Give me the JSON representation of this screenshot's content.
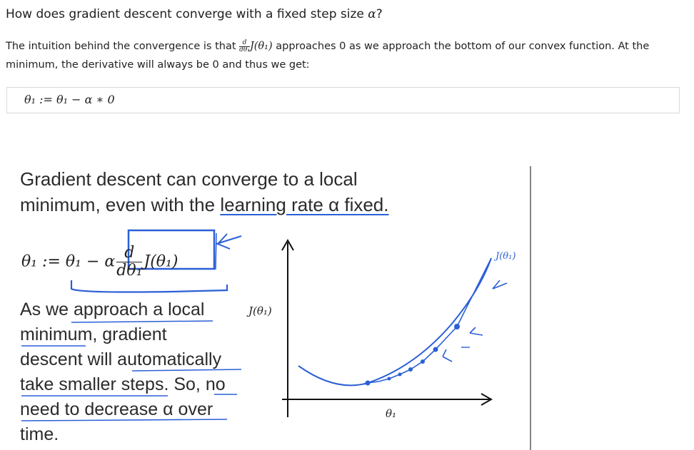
{
  "question": {
    "prefix": "How does gradient descent converge with a fixed step size ",
    "alpha": "α",
    "suffix": "?"
  },
  "intro": {
    "part1": "The intuition behind the convergence is that ",
    "frac_num": "d",
    "frac_den": "dθ₁",
    "func": "J(θ₁)",
    "part2": " approaches 0 as we approach the bottom of our convex function. At the minimum, the derivative will always be 0 and thus we get:"
  },
  "equation": "θ₁ := θ₁ − α ∗ 0",
  "slide": {
    "title_line1": "Gradient descent can converge to a local",
    "title_line2a": "minimum, even with the ",
    "title_line2b": "learning rate α fixed.",
    "update_lhs": "θ₁ := θ₁ − α",
    "update_num": "d",
    "update_den": "dθ₁",
    "update_func": "J(θ₁)",
    "note_lines": [
      "As we approach a local",
      "minimum, gradient",
      "descent will automatically",
      "take smaller steps. So, no",
      "need to decrease α over",
      "time."
    ],
    "y_axis_label": "J(θ₁)",
    "x_axis_label": "θ₁",
    "handwritten_label": "J(θ₁)"
  },
  "colors": {
    "ink": "#2b5fd6",
    "text": "#2b2b2b"
  }
}
